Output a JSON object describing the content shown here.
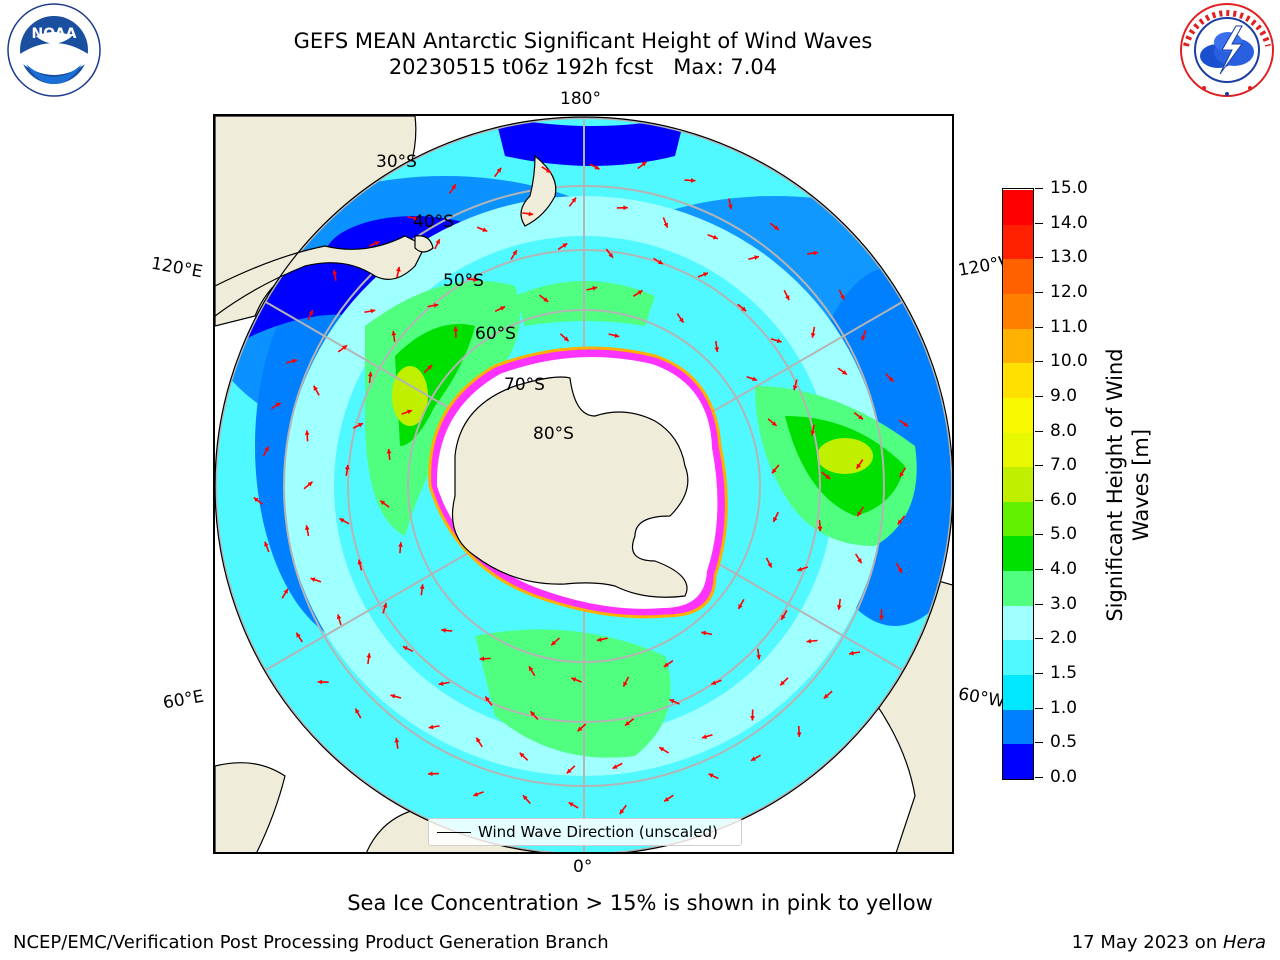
{
  "header": {
    "title_line1": "GEFS MEAN Antarctic Significant Height of Wind Waves",
    "title_line2": "20230515 t06z 192h fcst   Max: 7.04"
  },
  "logos": {
    "left": {
      "text": "NOAA",
      "ring_text": "NATIONAL OCEANIC AND ATMOSPHERIC ADMINISTRATION · U.S. DEPARTMENT OF COMMERCE",
      "icon": "noaa-logo"
    },
    "right": {
      "text": "NATIONAL WEATHER SERVICE",
      "icon": "nws-logo"
    }
  },
  "map": {
    "projection": "south-polar-stereographic",
    "lon_labels": {
      "top": "180°",
      "bottom": "0°",
      "left_upper": "120°E",
      "left_lower": "60°E",
      "right_upper": "120°W",
      "right_lower": "60°W"
    },
    "lat_labels": [
      "30°S",
      "40°S",
      "50°S",
      "60°S",
      "70°S",
      "80°S"
    ],
    "legend": {
      "label": "Wind Wave Direction (unscaled)"
    },
    "colors": {
      "land": "#efedd9",
      "ice": "#ffffff",
      "grid": "#b4b4b4",
      "arrow": "#ff0000",
      "ice_edge": "#ff33ff"
    }
  },
  "colorbar": {
    "label": "Significant Height of Wind Waves [m]",
    "ticks": [
      "0.0",
      "0.5",
      "1.0",
      "1.5",
      "2.0",
      "3.0",
      "4.0",
      "5.0",
      "6.0",
      "7.0",
      "8.0",
      "9.0",
      "10.0",
      "11.0",
      "12.0",
      "13.0",
      "14.0",
      "15.0"
    ],
    "colors": [
      "#0000ff",
      "#0080ff",
      "#00e8ff",
      "#50f8ff",
      "#a0ffff",
      "#50ff80",
      "#00e000",
      "#60f000",
      "#c0f000",
      "#e8f800",
      "#f8f800",
      "#ffe000",
      "#ffb000",
      "#ff8000",
      "#ff6000",
      "#ff2000",
      "#ff0000"
    ]
  },
  "footer": {
    "caption": "Sea Ice Concentration > 15% is shown in pink to yellow",
    "left": "NCEP/EMC/Verification Post Processing Product Generation Branch",
    "right_prefix": "17 May 2023 on ",
    "right_machine": "Hera"
  }
}
